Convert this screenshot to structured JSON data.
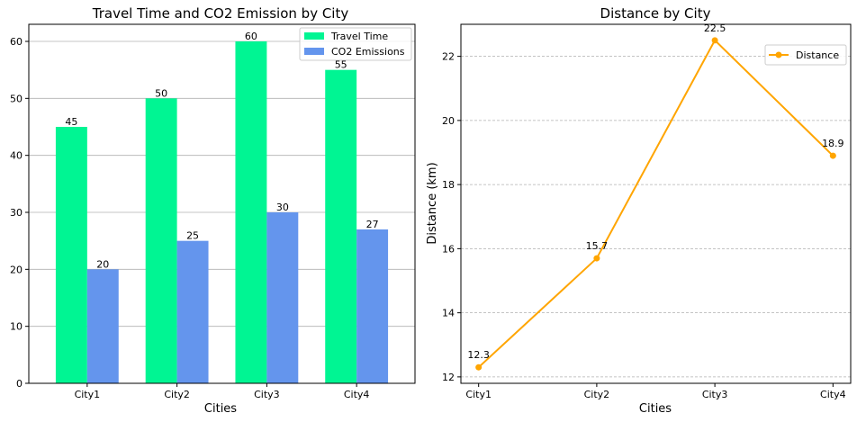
{
  "chart_data": [
    {
      "type": "bar",
      "title": "Travel Time and CO2 Emission by City",
      "xlabel": "Cities",
      "ylabel": "",
      "categories": [
        "City1",
        "City2",
        "City3",
        "City4"
      ],
      "series": [
        {
          "name": "Travel Time",
          "values": [
            45,
            50,
            60,
            55
          ],
          "color": "#00f593"
        },
        {
          "name": "CO2 Emissions",
          "values": [
            20,
            25,
            30,
            27
          ],
          "color": "#6495ed"
        }
      ],
      "ylim": [
        0,
        63
      ],
      "yticks": [
        0,
        10,
        20,
        30,
        40,
        50,
        60
      ],
      "grid": "y",
      "legend_position": "top-right"
    },
    {
      "type": "line",
      "title": "Distance by City",
      "xlabel": "Cities",
      "ylabel": "Distance (km)",
      "categories": [
        "City1",
        "City2",
        "City3",
        "City4"
      ],
      "series": [
        {
          "name": "Distance",
          "values": [
            12.3,
            15.7,
            22.5,
            18.9
          ],
          "labels": [
            "12.3",
            "15.7",
            "22.5",
            "18.9"
          ],
          "color": "#ffa500"
        }
      ],
      "ylim": [
        11.8,
        23.0
      ],
      "yticks": [
        12,
        14,
        16,
        18,
        20,
        22
      ],
      "grid": "y",
      "legend_position": "top-right"
    }
  ]
}
